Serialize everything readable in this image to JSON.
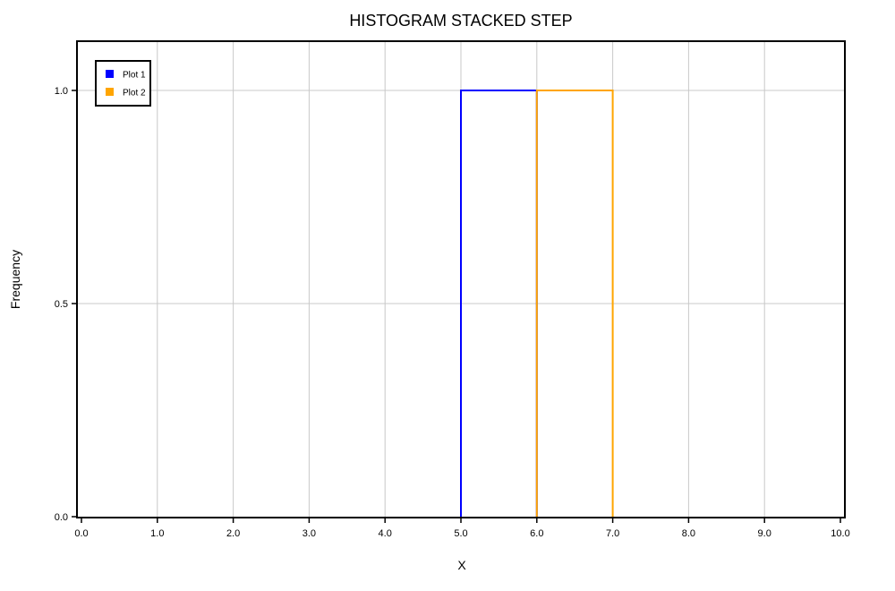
{
  "chart_data": {
    "type": "bar",
    "style": "stacked-step histogram",
    "title": "HISTOGRAM STACKED STEP",
    "xlabel": "X",
    "ylabel": "Frequency",
    "xlim": [
      0,
      10
    ],
    "ylim": [
      0,
      1.1
    ],
    "x_ticks": [
      "0.0",
      "1.0",
      "2.0",
      "3.0",
      "4.0",
      "5.0",
      "6.0",
      "7.0",
      "8.0",
      "9.0",
      "10.0"
    ],
    "y_ticks": [
      "0.0",
      "0.5",
      "1.0"
    ],
    "grid": true,
    "legend_position": "top-left",
    "series": [
      {
        "name": "Plot 1",
        "color": "#0000ff",
        "bins": [
          {
            "x0": 5,
            "x1": 6,
            "value": 1
          }
        ]
      },
      {
        "name": "Plot 2",
        "color": "#ffa500",
        "bins": [
          {
            "x0": 6,
            "x1": 7,
            "value": 1
          }
        ]
      }
    ]
  }
}
